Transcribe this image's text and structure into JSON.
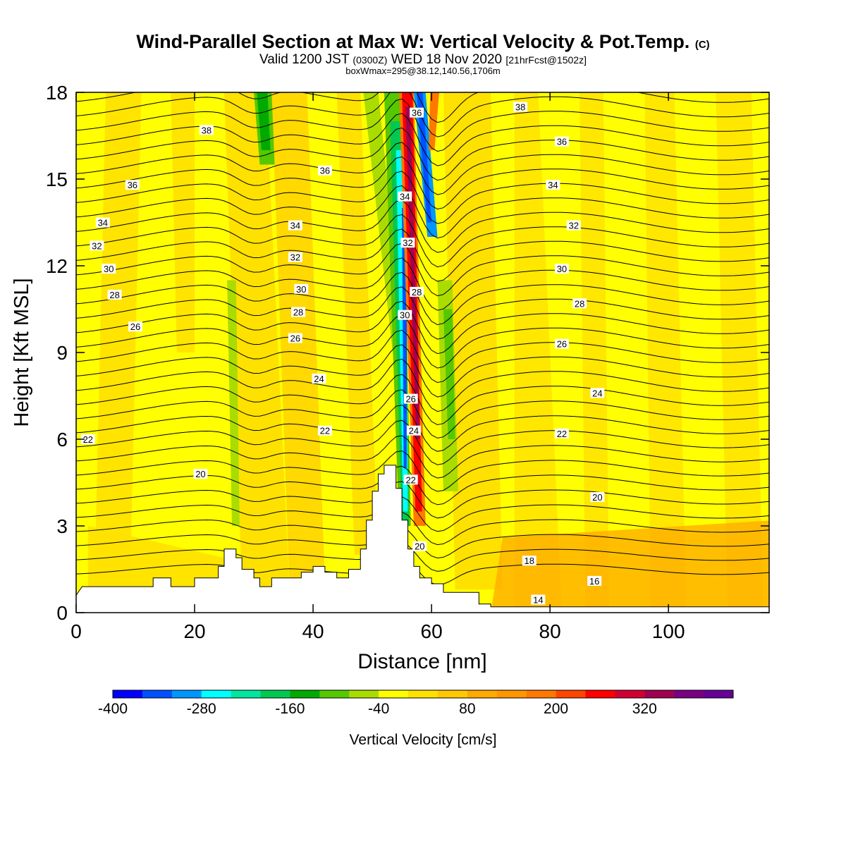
{
  "header": {
    "title": "Wind-Parallel Section at Max W: Vertical Velocity & Pot.Temp.",
    "copyright": "(C)",
    "valid_prefix": "Valid 1200 JST",
    "valid_z": "(0300Z)",
    "valid_date": "WED 18 Nov 2020",
    "forecast": "[21hrFcst@1502z]",
    "boxline": "boxWmax=295@38.12,140.56,1706m"
  },
  "chart_data": {
    "type": "heatmap",
    "xlabel": "Distance [nm]",
    "ylabel": "Height [Kft MSL]",
    "xlim": [
      0,
      117
    ],
    "ylim": [
      0,
      18
    ],
    "x_ticks": [
      "0",
      "20",
      "40",
      "60",
      "80",
      "100"
    ],
    "y_ticks": [
      "0",
      "3",
      "6",
      "9",
      "12",
      "15",
      "18"
    ],
    "colorbar": {
      "label": "Vertical Velocity [cm/s]",
      "tick_labels": [
        "-400",
        "-280",
        "-160",
        "-40",
        "80",
        "200",
        "320"
      ],
      "colors": [
        "#0000ff",
        "#0050ff",
        "#0096ff",
        "#00ffff",
        "#00e6a0",
        "#00c850",
        "#00aa00",
        "#55c800",
        "#aadc00",
        "#ffff00",
        "#ffe100",
        "#ffc800",
        "#ffaa00",
        "#ff9600",
        "#ff7800",
        "#ff4600",
        "#ff0000",
        "#d20032",
        "#a00050",
        "#780082",
        "#640096"
      ]
    },
    "theta_contour_labels": [
      {
        "text": "38",
        "x": 22,
        "y": 16.7
      },
      {
        "text": "38",
        "x": 75,
        "y": 17.5
      },
      {
        "text": "36",
        "x": 9.5,
        "y": 14.8
      },
      {
        "text": "36",
        "x": 42,
        "y": 15.3
      },
      {
        "text": "36",
        "x": 57.5,
        "y": 17.3
      },
      {
        "text": "36",
        "x": 82,
        "y": 16.3
      },
      {
        "text": "34",
        "x": 4.5,
        "y": 13.5
      },
      {
        "text": "34",
        "x": 37,
        "y": 13.4
      },
      {
        "text": "34",
        "x": 55.5,
        "y": 14.4
      },
      {
        "text": "34",
        "x": 80.5,
        "y": 14.8
      },
      {
        "text": "32",
        "x": 3.5,
        "y": 12.7
      },
      {
        "text": "32",
        "x": 37,
        "y": 12.3
      },
      {
        "text": "32",
        "x": 56,
        "y": 12.8
      },
      {
        "text": "32",
        "x": 84,
        "y": 13.4
      },
      {
        "text": "30",
        "x": 5.5,
        "y": 11.9
      },
      {
        "text": "30",
        "x": 38,
        "y": 11.2
      },
      {
        "text": "30",
        "x": 55.5,
        "y": 10.3
      },
      {
        "text": "30",
        "x": 82,
        "y": 11.9
      },
      {
        "text": "28",
        "x": 6.5,
        "y": 11.0
      },
      {
        "text": "28",
        "x": 37.5,
        "y": 10.4
      },
      {
        "text": "28",
        "x": 57.5,
        "y": 11.1
      },
      {
        "text": "28",
        "x": 85,
        "y": 10.7
      },
      {
        "text": "26",
        "x": 10,
        "y": 9.9
      },
      {
        "text": "26",
        "x": 37,
        "y": 9.5
      },
      {
        "text": "26",
        "x": 56.5,
        "y": 7.4
      },
      {
        "text": "26",
        "x": 82,
        "y": 9.3
      },
      {
        "text": "24",
        "x": 41,
        "y": 8.1
      },
      {
        "text": "24",
        "x": 57,
        "y": 6.3
      },
      {
        "text": "24",
        "x": 88,
        "y": 7.6
      },
      {
        "text": "22",
        "x": 2,
        "y": 6.0
      },
      {
        "text": "22",
        "x": 42,
        "y": 6.3
      },
      {
        "text": "22",
        "x": 56.5,
        "y": 4.6
      },
      {
        "text": "22",
        "x": 82,
        "y": 6.2
      },
      {
        "text": "20",
        "x": 21,
        "y": 4.8
      },
      {
        "text": "20",
        "x": 58,
        "y": 2.3
      },
      {
        "text": "20",
        "x": 88,
        "y": 4.0
      },
      {
        "text": "18",
        "x": 76.5,
        "y": 1.8
      },
      {
        "text": "16",
        "x": 87.5,
        "y": 1.1
      },
      {
        "text": "14",
        "x": 78,
        "y": 0.45
      }
    ]
  }
}
